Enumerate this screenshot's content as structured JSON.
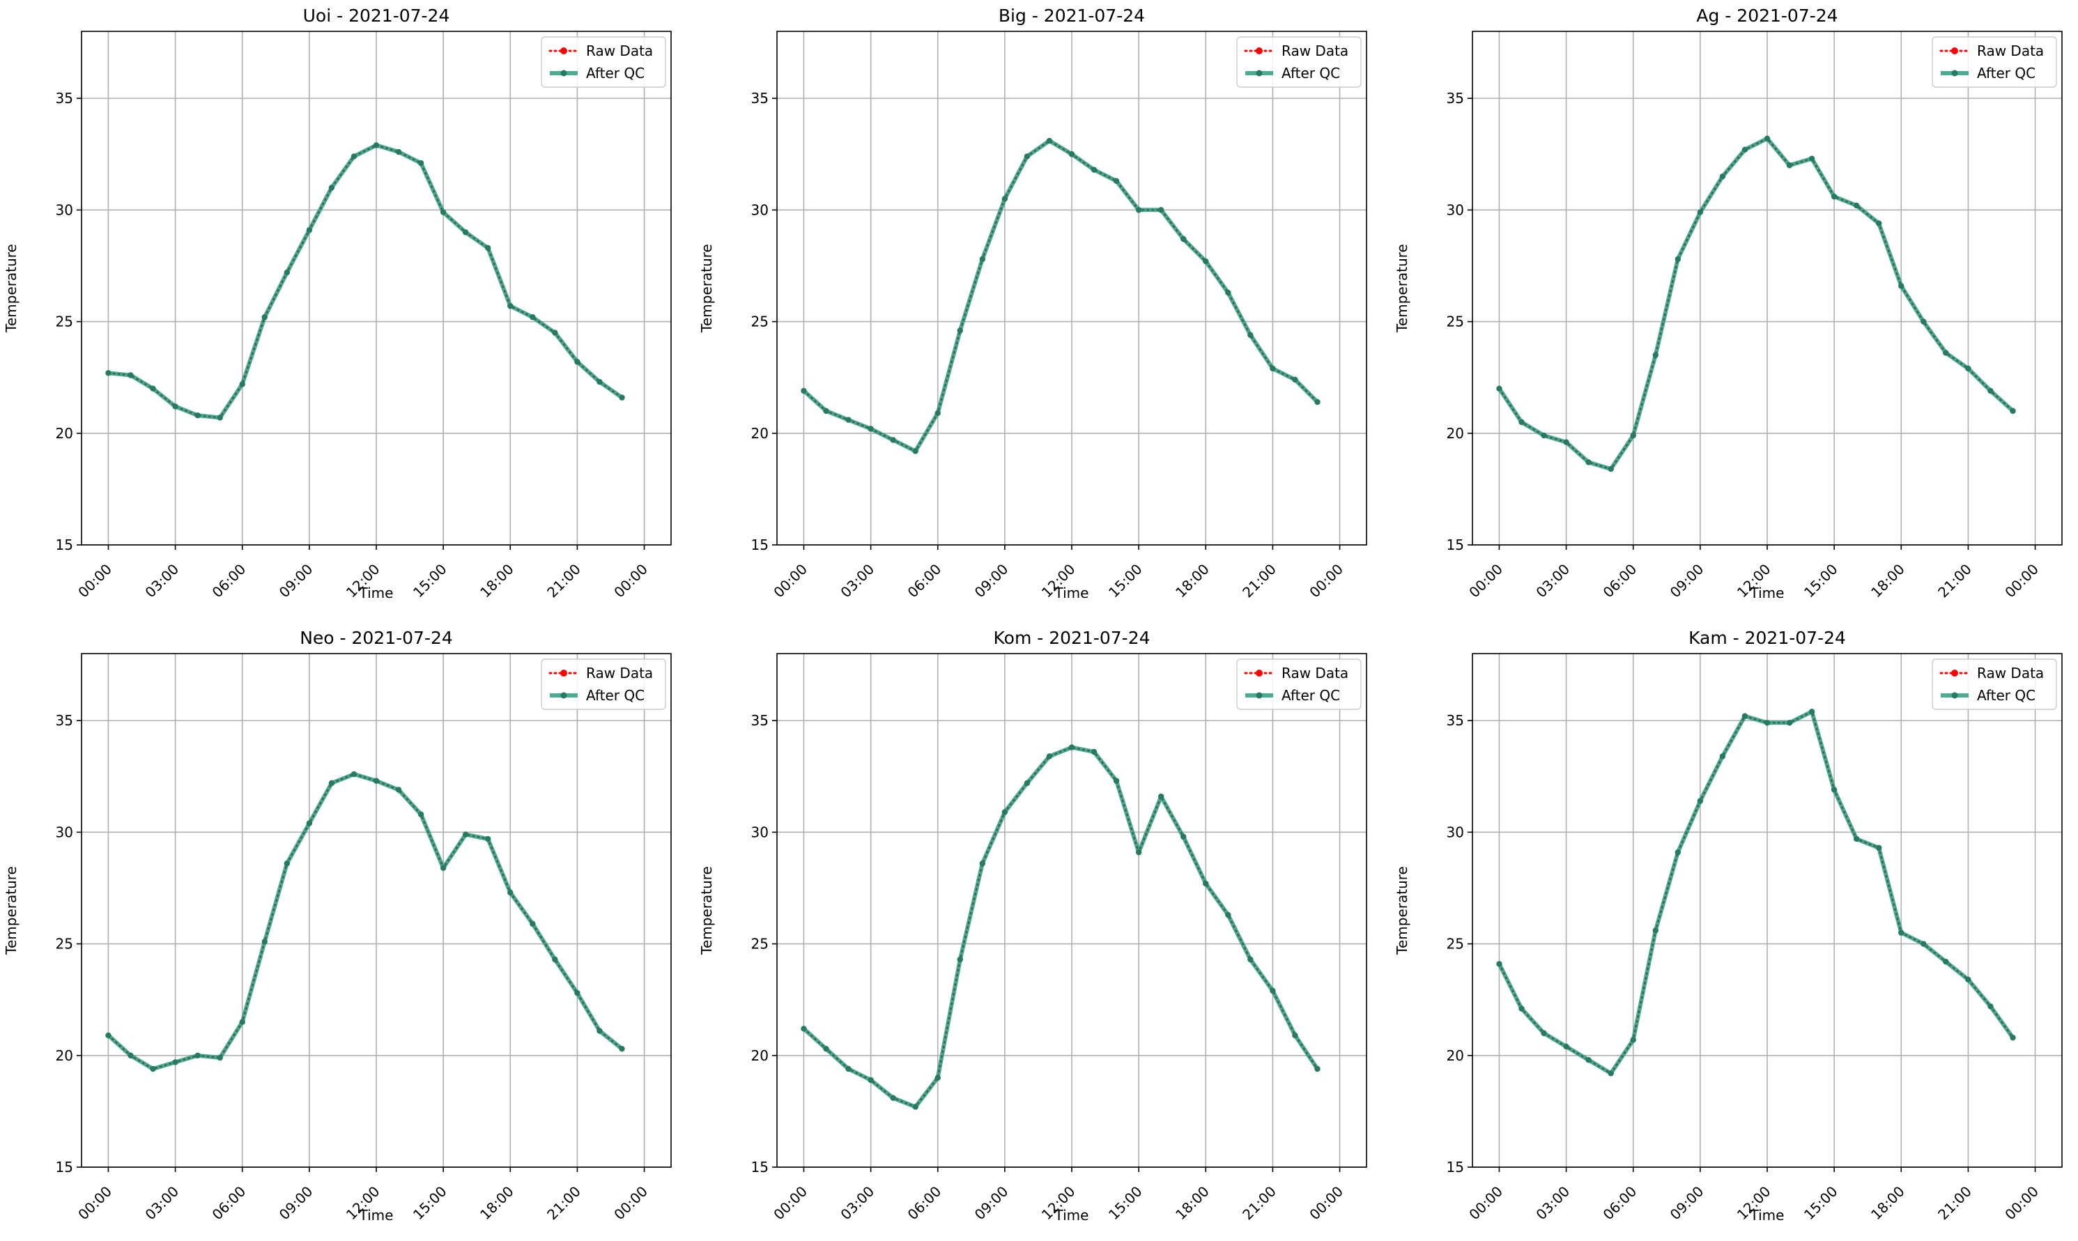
{
  "colors": {
    "raw": "#ff0000",
    "qc": "#2a9d80",
    "qc_marker": "#267a61",
    "grid": "#b0b0b0",
    "axis": "#000000"
  },
  "chart_data": [
    {
      "type": "line",
      "title": "Uoi - 2021-07-24",
      "xlabel": "Time",
      "ylabel": "Temperature",
      "xlim": [
        "2021-07-24 00:00",
        "2021-07-25 00:00"
      ],
      "ylim": [
        15,
        38
      ],
      "x_ticks": [
        "00:00",
        "03:00",
        "06:00",
        "09:00",
        "12:00",
        "15:00",
        "18:00",
        "21:00",
        "00:00"
      ],
      "y_ticks": [
        15,
        20,
        25,
        30,
        35
      ],
      "grid": true,
      "legend_position": "top-right",
      "x": [
        "00:00",
        "01:00",
        "02:00",
        "03:00",
        "04:00",
        "05:00",
        "06:00",
        "07:00",
        "08:00",
        "09:00",
        "10:00",
        "11:00",
        "12:00",
        "13:00",
        "14:00",
        "15:00",
        "16:00",
        "17:00",
        "18:00",
        "19:00",
        "20:00",
        "21:00",
        "22:00",
        "23:00"
      ],
      "series": [
        {
          "name": "Raw Data",
          "style": "dotted",
          "values": [
            22.7,
            22.6,
            22.0,
            21.2,
            20.8,
            20.7,
            22.2,
            25.2,
            27.2,
            29.1,
            31.0,
            32.4,
            32.9,
            32.6,
            32.1,
            29.9,
            29.0,
            28.3,
            25.7,
            25.2,
            24.5,
            23.2,
            22.3,
            21.6
          ]
        },
        {
          "name": "After QC",
          "style": "solid",
          "values": [
            22.7,
            22.6,
            22.0,
            21.2,
            20.8,
            20.7,
            22.2,
            25.2,
            27.2,
            29.1,
            31.0,
            32.4,
            32.9,
            32.6,
            32.1,
            29.9,
            29.0,
            28.3,
            25.7,
            25.2,
            24.5,
            23.2,
            22.3,
            21.6
          ]
        }
      ]
    },
    {
      "type": "line",
      "title": "Big - 2021-07-24",
      "xlabel": "Time",
      "ylabel": "Temperature",
      "xlim": [
        "2021-07-24 00:00",
        "2021-07-25 00:00"
      ],
      "ylim": [
        15,
        38
      ],
      "x_ticks": [
        "00:00",
        "03:00",
        "06:00",
        "09:00",
        "12:00",
        "15:00",
        "18:00",
        "21:00",
        "00:00"
      ],
      "y_ticks": [
        15,
        20,
        25,
        30,
        35
      ],
      "grid": true,
      "legend_position": "top-right",
      "x": [
        "00:00",
        "01:00",
        "02:00",
        "03:00",
        "04:00",
        "05:00",
        "06:00",
        "07:00",
        "08:00",
        "09:00",
        "10:00",
        "11:00",
        "12:00",
        "13:00",
        "14:00",
        "15:00",
        "16:00",
        "17:00",
        "18:00",
        "19:00",
        "20:00",
        "21:00",
        "22:00",
        "23:00"
      ],
      "series": [
        {
          "name": "Raw Data",
          "style": "dotted",
          "values": [
            21.9,
            21.0,
            20.6,
            20.2,
            19.7,
            19.2,
            20.9,
            24.6,
            27.8,
            30.5,
            32.4,
            33.1,
            32.5,
            31.8,
            31.3,
            30.0,
            30.0,
            28.7,
            27.7,
            26.3,
            24.4,
            22.9,
            22.4,
            21.4
          ]
        },
        {
          "name": "After QC",
          "style": "solid",
          "values": [
            21.9,
            21.0,
            20.6,
            20.2,
            19.7,
            19.2,
            20.9,
            24.6,
            27.8,
            30.5,
            32.4,
            33.1,
            32.5,
            31.8,
            31.3,
            30.0,
            30.0,
            28.7,
            27.7,
            26.3,
            24.4,
            22.9,
            22.4,
            21.4
          ]
        }
      ]
    },
    {
      "type": "line",
      "title": "Ag - 2021-07-24",
      "xlabel": "Time",
      "ylabel": "Temperature",
      "xlim": [
        "2021-07-24 00:00",
        "2021-07-25 00:00"
      ],
      "ylim": [
        15,
        38
      ],
      "x_ticks": [
        "00:00",
        "03:00",
        "06:00",
        "09:00",
        "12:00",
        "15:00",
        "18:00",
        "21:00",
        "00:00"
      ],
      "y_ticks": [
        15,
        20,
        25,
        30,
        35
      ],
      "grid": true,
      "legend_position": "top-right",
      "x": [
        "00:00",
        "01:00",
        "02:00",
        "03:00",
        "04:00",
        "05:00",
        "06:00",
        "07:00",
        "08:00",
        "09:00",
        "10:00",
        "11:00",
        "12:00",
        "13:00",
        "14:00",
        "15:00",
        "16:00",
        "17:00",
        "18:00",
        "19:00",
        "20:00",
        "21:00",
        "22:00",
        "23:00"
      ],
      "series": [
        {
          "name": "Raw Data",
          "style": "dotted",
          "values": [
            22.0,
            20.5,
            19.9,
            19.6,
            18.7,
            18.4,
            19.9,
            23.5,
            27.8,
            29.9,
            31.5,
            32.7,
            33.2,
            32.0,
            32.3,
            30.6,
            30.2,
            29.4,
            26.6,
            25.0,
            23.6,
            22.9,
            21.9,
            21.0
          ]
        },
        {
          "name": "After QC",
          "style": "solid",
          "values": [
            22.0,
            20.5,
            19.9,
            19.6,
            18.7,
            18.4,
            19.9,
            23.5,
            27.8,
            29.9,
            31.5,
            32.7,
            33.2,
            32.0,
            32.3,
            30.6,
            30.2,
            29.4,
            26.6,
            25.0,
            23.6,
            22.9,
            21.9,
            21.0
          ]
        }
      ]
    },
    {
      "type": "line",
      "title": "Neo - 2021-07-24",
      "xlabel": "Time",
      "ylabel": "Temperature",
      "xlim": [
        "2021-07-24 00:00",
        "2021-07-25 00:00"
      ],
      "ylim": [
        15,
        38
      ],
      "x_ticks": [
        "00:00",
        "03:00",
        "06:00",
        "09:00",
        "12:00",
        "15:00",
        "18:00",
        "21:00",
        "00:00"
      ],
      "y_ticks": [
        15,
        20,
        25,
        30,
        35
      ],
      "grid": true,
      "legend_position": "top-right",
      "x": [
        "00:00",
        "01:00",
        "02:00",
        "03:00",
        "04:00",
        "05:00",
        "06:00",
        "07:00",
        "08:00",
        "09:00",
        "10:00",
        "11:00",
        "12:00",
        "13:00",
        "14:00",
        "15:00",
        "16:00",
        "17:00",
        "18:00",
        "19:00",
        "20:00",
        "21:00",
        "22:00",
        "23:00"
      ],
      "series": [
        {
          "name": "Raw Data",
          "style": "dotted",
          "values": [
            20.9,
            20.0,
            19.4,
            19.7,
            20.0,
            19.9,
            21.5,
            25.1,
            28.6,
            30.4,
            32.2,
            32.6,
            32.3,
            31.9,
            30.8,
            28.4,
            29.9,
            29.7,
            27.3,
            25.9,
            24.3,
            22.8,
            21.1,
            20.3
          ]
        },
        {
          "name": "After QC",
          "style": "solid",
          "values": [
            20.9,
            20.0,
            19.4,
            19.7,
            20.0,
            19.9,
            21.5,
            25.1,
            28.6,
            30.4,
            32.2,
            32.6,
            32.3,
            31.9,
            30.8,
            28.4,
            29.9,
            29.7,
            27.3,
            25.9,
            24.3,
            22.8,
            21.1,
            20.3
          ]
        }
      ]
    },
    {
      "type": "line",
      "title": "Kom - 2021-07-24",
      "xlabel": "Time",
      "ylabel": "Temperature",
      "xlim": [
        "2021-07-24 00:00",
        "2021-07-25 00:00"
      ],
      "ylim": [
        15,
        38
      ],
      "x_ticks": [
        "00:00",
        "03:00",
        "06:00",
        "09:00",
        "12:00",
        "15:00",
        "18:00",
        "21:00",
        "00:00"
      ],
      "y_ticks": [
        15,
        20,
        25,
        30,
        35
      ],
      "grid": true,
      "legend_position": "top-right",
      "x": [
        "00:00",
        "01:00",
        "02:00",
        "03:00",
        "04:00",
        "05:00",
        "06:00",
        "07:00",
        "08:00",
        "09:00",
        "10:00",
        "11:00",
        "12:00",
        "13:00",
        "14:00",
        "15:00",
        "16:00",
        "17:00",
        "18:00",
        "19:00",
        "20:00",
        "21:00",
        "22:00",
        "23:00"
      ],
      "series": [
        {
          "name": "Raw Data",
          "style": "dotted",
          "values": [
            21.2,
            20.3,
            19.4,
            18.9,
            18.1,
            17.7,
            19.0,
            24.3,
            28.6,
            30.9,
            32.2,
            33.4,
            33.8,
            33.6,
            32.3,
            29.1,
            31.6,
            29.8,
            27.7,
            26.3,
            24.3,
            22.9,
            20.9,
            19.4
          ]
        },
        {
          "name": "After QC",
          "style": "solid",
          "values": [
            21.2,
            20.3,
            19.4,
            18.9,
            18.1,
            17.7,
            19.0,
            24.3,
            28.6,
            30.9,
            32.2,
            33.4,
            33.8,
            33.6,
            32.3,
            29.1,
            31.6,
            29.8,
            27.7,
            26.3,
            24.3,
            22.9,
            20.9,
            19.4
          ]
        }
      ]
    },
    {
      "type": "line",
      "title": "Kam - 2021-07-24",
      "xlabel": "Time",
      "ylabel": "Temperature",
      "xlim": [
        "2021-07-24 00:00",
        "2021-07-25 00:00"
      ],
      "ylim": [
        15,
        38
      ],
      "x_ticks": [
        "00:00",
        "03:00",
        "06:00",
        "09:00",
        "12:00",
        "15:00",
        "18:00",
        "21:00",
        "00:00"
      ],
      "y_ticks": [
        15,
        20,
        25,
        30,
        35
      ],
      "grid": true,
      "legend_position": "top-right",
      "x": [
        "00:00",
        "01:00",
        "02:00",
        "03:00",
        "04:00",
        "05:00",
        "06:00",
        "07:00",
        "08:00",
        "09:00",
        "10:00",
        "11:00",
        "12:00",
        "13:00",
        "14:00",
        "15:00",
        "16:00",
        "17:00",
        "18:00",
        "19:00",
        "20:00",
        "21:00",
        "22:00",
        "23:00"
      ],
      "series": [
        {
          "name": "Raw Data",
          "style": "dotted",
          "values": [
            24.1,
            22.1,
            21.0,
            20.4,
            19.8,
            19.2,
            20.7,
            25.6,
            29.1,
            31.4,
            33.4,
            35.2,
            34.9,
            34.9,
            35.4,
            31.9,
            29.7,
            29.3,
            25.5,
            25.0,
            24.2,
            23.4,
            22.2,
            20.8
          ]
        },
        {
          "name": "After QC",
          "style": "solid",
          "values": [
            24.1,
            22.1,
            21.0,
            20.4,
            19.8,
            19.2,
            20.7,
            25.6,
            29.1,
            31.4,
            33.4,
            35.2,
            34.9,
            34.9,
            35.4,
            31.9,
            29.7,
            29.3,
            25.5,
            25.0,
            24.2,
            23.4,
            22.2,
            20.8
          ]
        }
      ]
    }
  ]
}
